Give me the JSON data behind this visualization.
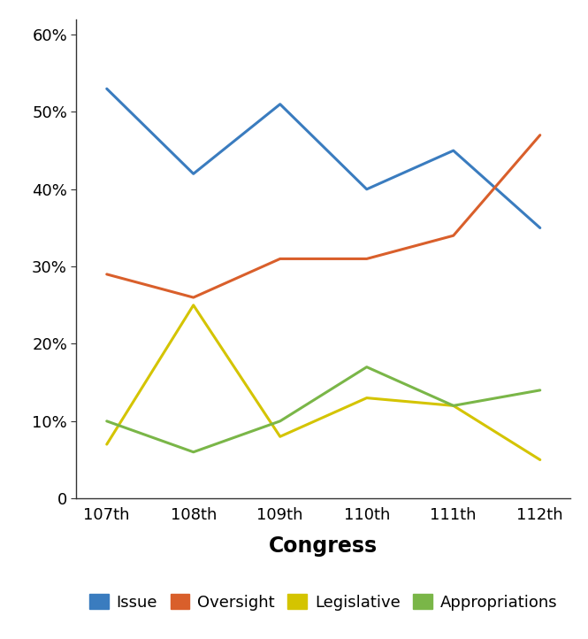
{
  "categories": [
    "107th",
    "108th",
    "109th",
    "110th",
    "111th",
    "112th"
  ],
  "series": {
    "Issue": [
      53,
      42,
      51,
      40,
      45,
      35
    ],
    "Oversight": [
      29,
      26,
      31,
      31,
      34,
      47
    ],
    "Legislative": [
      7,
      25,
      8,
      13,
      12,
      5
    ],
    "Appropriations": [
      10,
      6,
      10,
      17,
      12,
      14
    ]
  },
  "colors": {
    "Issue": "#3a7cbf",
    "Oversight": "#d95f2b",
    "Legislative": "#d4c400",
    "Appropriations": "#7ab648"
  },
  "xlabel": "Congress",
  "ylim": [
    0,
    62
  ],
  "yticks": [
    0,
    10,
    20,
    30,
    40,
    50,
    60
  ],
  "ytick_labels": [
    "0",
    "10%",
    "20%",
    "30%",
    "40%",
    "50%",
    "60%"
  ],
  "line_width": 2.2,
  "legend_order": [
    "Issue",
    "Oversight",
    "Legislative",
    "Appropriations"
  ],
  "background_color": "#ffffff",
  "xlabel_fontsize": 17,
  "xlabel_fontweight": "bold",
  "tick_fontsize": 13,
  "legend_fontsize": 13,
  "spine_color": "#333333"
}
